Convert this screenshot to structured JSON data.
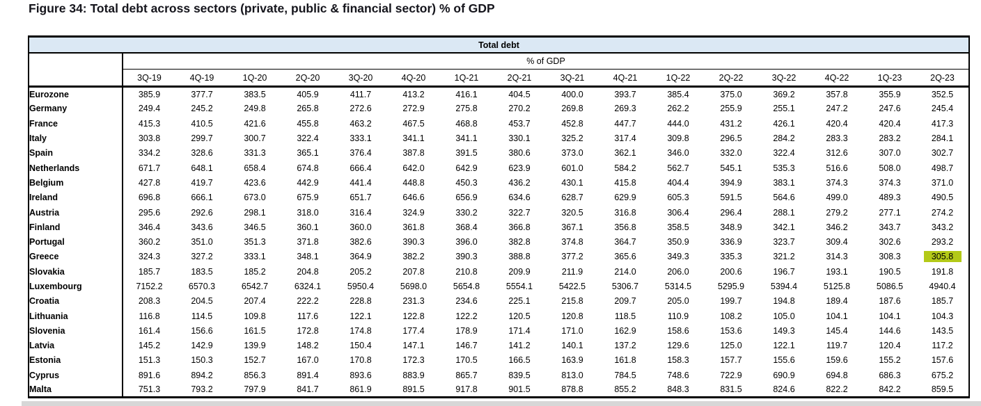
{
  "title": "Figure 34: Total debt across sectors (private, public & financial sector) % of GDP",
  "colors": {
    "group_header_bg": "#dbe8f4",
    "highlight_bg": "#b3c918",
    "border": "#000000",
    "bottom_bar": "#d7d7d7"
  },
  "chart_data": {
    "type": "table",
    "title": "Total debt",
    "subtitle": "% of GDP",
    "columns": [
      "3Q-19",
      "4Q-19",
      "1Q-20",
      "2Q-20",
      "3Q-20",
      "4Q-20",
      "1Q-21",
      "2Q-21",
      "3Q-21",
      "4Q-21",
      "1Q-22",
      "2Q-22",
      "3Q-22",
      "4Q-22",
      "1Q-23",
      "2Q-23"
    ],
    "highlight": {
      "row_label": "Greece",
      "column": "2Q-23",
      "value": "305.8",
      "color": "#b3c918"
    },
    "rows": [
      {
        "label": "Eurozone",
        "values": [
          "385.9",
          "377.7",
          "383.5",
          "405.9",
          "411.7",
          "413.2",
          "416.1",
          "404.5",
          "400.0",
          "393.7",
          "385.4",
          "375.0",
          "369.2",
          "357.8",
          "355.9",
          "352.5"
        ]
      },
      {
        "label": "Germany",
        "values": [
          "249.4",
          "245.2",
          "249.8",
          "265.8",
          "272.6",
          "272.9",
          "275.8",
          "270.2",
          "269.8",
          "269.3",
          "262.2",
          "255.9",
          "255.1",
          "247.2",
          "247.6",
          "245.4"
        ]
      },
      {
        "label": "France",
        "values": [
          "415.3",
          "410.5",
          "421.6",
          "455.8",
          "463.2",
          "467.5",
          "468.8",
          "453.7",
          "452.8",
          "447.7",
          "444.0",
          "431.2",
          "426.1",
          "420.4",
          "420.4",
          "417.3"
        ]
      },
      {
        "label": "Italy",
        "values": [
          "303.8",
          "299.7",
          "300.7",
          "322.4",
          "333.1",
          "341.1",
          "341.1",
          "330.1",
          "325.2",
          "317.4",
          "309.8",
          "296.5",
          "284.2",
          "283.3",
          "283.2",
          "284.1"
        ]
      },
      {
        "label": "Spain",
        "values": [
          "334.2",
          "328.6",
          "331.3",
          "365.1",
          "376.4",
          "387.8",
          "391.5",
          "380.6",
          "373.0",
          "362.1",
          "346.0",
          "332.0",
          "322.4",
          "312.6",
          "307.0",
          "302.7"
        ]
      },
      {
        "label": "Netherlands",
        "values": [
          "671.7",
          "648.1",
          "658.4",
          "674.8",
          "666.4",
          "642.0",
          "642.9",
          "623.9",
          "601.0",
          "584.2",
          "562.7",
          "545.1",
          "535.3",
          "516.6",
          "508.0",
          "498.7"
        ]
      },
      {
        "label": "Belgium",
        "values": [
          "427.8",
          "419.7",
          "423.6",
          "442.9",
          "441.4",
          "448.8",
          "450.3",
          "436.2",
          "430.1",
          "415.8",
          "404.4",
          "394.9",
          "383.1",
          "374.3",
          "374.3",
          "371.0"
        ]
      },
      {
        "label": "Ireland",
        "values": [
          "696.8",
          "666.1",
          "673.0",
          "675.9",
          "651.7",
          "646.6",
          "656.9",
          "634.6",
          "628.7",
          "629.9",
          "605.3",
          "591.5",
          "564.6",
          "499.0",
          "489.3",
          "490.5"
        ]
      },
      {
        "label": "Austria",
        "values": [
          "295.6",
          "292.6",
          "298.1",
          "318.0",
          "316.4",
          "324.9",
          "330.2",
          "322.7",
          "320.5",
          "316.8",
          "306.4",
          "296.4",
          "288.1",
          "279.2",
          "277.1",
          "274.2"
        ]
      },
      {
        "label": "Finland",
        "values": [
          "346.4",
          "343.6",
          "346.5",
          "360.1",
          "360.0",
          "361.8",
          "368.4",
          "366.8",
          "367.1",
          "356.8",
          "358.5",
          "348.9",
          "342.1",
          "346.2",
          "343.7",
          "343.2"
        ]
      },
      {
        "label": "Portugal",
        "values": [
          "360.2",
          "351.0",
          "351.3",
          "371.8",
          "382.6",
          "390.3",
          "396.0",
          "382.8",
          "374.8",
          "364.7",
          "350.9",
          "336.9",
          "323.7",
          "309.4",
          "302.6",
          "293.2"
        ]
      },
      {
        "label": "Greece",
        "values": [
          "324.3",
          "327.2",
          "333.1",
          "348.1",
          "364.9",
          "382.2",
          "390.3",
          "388.8",
          "377.2",
          "365.6",
          "349.3",
          "335.3",
          "321.2",
          "314.3",
          "308.3",
          "305.8"
        ]
      },
      {
        "label": "Slovakia",
        "values": [
          "185.7",
          "183.5",
          "185.2",
          "204.8",
          "205.2",
          "207.8",
          "210.8",
          "209.9",
          "211.9",
          "214.0",
          "206.0",
          "200.6",
          "196.7",
          "193.1",
          "190.5",
          "191.8"
        ]
      },
      {
        "label": "Luxembourg",
        "values": [
          "7152.2",
          "6570.3",
          "6542.7",
          "6324.1",
          "5950.4",
          "5698.0",
          "5654.8",
          "5554.1",
          "5422.5",
          "5306.7",
          "5314.5",
          "5295.9",
          "5394.4",
          "5125.8",
          "5086.5",
          "4940.4"
        ]
      },
      {
        "label": "Croatia",
        "values": [
          "208.3",
          "204.5",
          "207.4",
          "222.2",
          "228.8",
          "231.3",
          "234.6",
          "225.1",
          "215.8",
          "209.7",
          "205.0",
          "199.7",
          "194.8",
          "189.4",
          "187.6",
          "185.7"
        ]
      },
      {
        "label": "Lithuania",
        "values": [
          "116.8",
          "114.5",
          "109.8",
          "117.6",
          "122.1",
          "122.8",
          "122.2",
          "120.5",
          "120.8",
          "118.5",
          "110.9",
          "108.2",
          "105.0",
          "104.1",
          "104.1",
          "104.3"
        ]
      },
      {
        "label": "Slovenia",
        "values": [
          "161.4",
          "156.6",
          "161.5",
          "172.8",
          "174.8",
          "177.4",
          "178.9",
          "171.4",
          "171.0",
          "162.9",
          "158.6",
          "153.6",
          "149.3",
          "145.4",
          "144.6",
          "143.5"
        ]
      },
      {
        "label": "Latvia",
        "values": [
          "145.2",
          "142.9",
          "139.9",
          "148.2",
          "150.4",
          "147.1",
          "146.7",
          "141.2",
          "140.1",
          "137.2",
          "129.6",
          "125.0",
          "122.1",
          "119.7",
          "120.4",
          "117.2"
        ]
      },
      {
        "label": "Estonia",
        "values": [
          "151.3",
          "150.3",
          "152.7",
          "167.0",
          "170.8",
          "172.3",
          "170.5",
          "166.5",
          "163.9",
          "161.8",
          "158.3",
          "157.7",
          "155.6",
          "159.6",
          "155.2",
          "157.6"
        ]
      },
      {
        "label": "Cyprus",
        "values": [
          "891.6",
          "894.2",
          "856.3",
          "891.4",
          "893.6",
          "883.9",
          "865.7",
          "839.5",
          "813.0",
          "784.5",
          "748.6",
          "722.9",
          "690.9",
          "694.8",
          "686.3",
          "675.2"
        ]
      },
      {
        "label": "Malta",
        "values": [
          "751.3",
          "793.2",
          "797.9",
          "841.7",
          "861.9",
          "891.5",
          "917.8",
          "901.5",
          "878.8",
          "855.2",
          "848.3",
          "831.5",
          "824.6",
          "822.2",
          "842.2",
          "859.5"
        ]
      }
    ]
  }
}
